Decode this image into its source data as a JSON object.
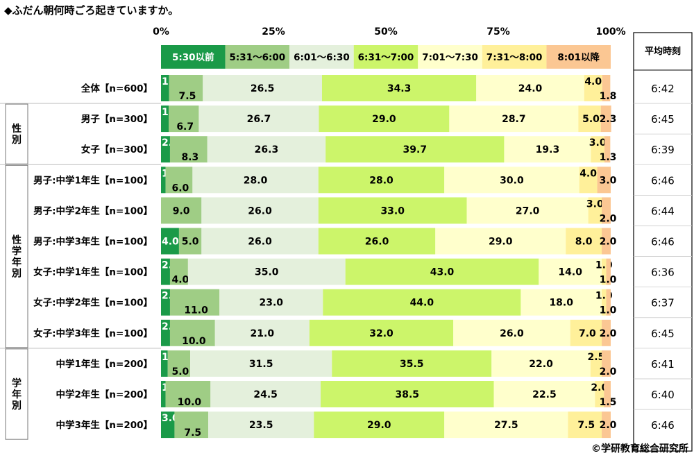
{
  "title": "◆ふだん朝何時ごろ起きていますか。",
  "copyright": "©学研教育総合研究所",
  "chart_data": {
    "type": "bar",
    "orientation": "horizontal-stacked-100",
    "xlim": [
      0,
      100
    ],
    "x_ticks": [
      "0%",
      "25%",
      "50%",
      "75%",
      "100%"
    ],
    "legend_position": "top",
    "series": [
      {
        "name": "5:30以前",
        "color": "#1a9a48",
        "label_color": "#ffffff"
      },
      {
        "name": "5:31～6:00",
        "color": "#9fcd85",
        "label_color": "#000000"
      },
      {
        "name": "6:01～6:30",
        "color": "#e4f0dc",
        "label_color": "#000000"
      },
      {
        "name": "6:31～7:00",
        "color": "#ccf56a",
        "label_color": "#000000"
      },
      {
        "name": "7:01～7:30",
        "color": "#ffffcc",
        "label_color": "#000000"
      },
      {
        "name": "7:31～8:00",
        "color": "#fff09a",
        "label_color": "#000000"
      },
      {
        "name": "8:01以降",
        "color": "#fbc793",
        "label_color": "#000000"
      }
    ],
    "side_column_header": "平均時刻",
    "categories": [
      {
        "label": "全体【n=600】",
        "values": [
          1.8,
          7.5,
          26.5,
          34.3,
          24.0,
          4.0,
          1.8
        ],
        "average": "6:42"
      },
      {
        "label": "男子【n=300】",
        "values": [
          1.7,
          6.7,
          26.7,
          29.0,
          28.7,
          5.0,
          2.3
        ],
        "average": "6:45"
      },
      {
        "label": "女子【n=300】",
        "values": [
          2.0,
          8.3,
          26.3,
          39.7,
          19.3,
          3.0,
          1.3
        ],
        "average": "6:39"
      },
      {
        "label": "男子:中学1年生【n=100】",
        "values": [
          1.0,
          6.0,
          28.0,
          28.0,
          30.0,
          4.0,
          3.0
        ],
        "average": "6:46"
      },
      {
        "label": "男子:中学2年生【n=100】",
        "values": [
          0.0,
          9.0,
          26.0,
          33.0,
          27.0,
          3.0,
          2.0
        ],
        "average": "6:44"
      },
      {
        "label": "男子:中学3年生【n=100】",
        "values": [
          4.0,
          5.0,
          26.0,
          26.0,
          29.0,
          8.0,
          2.0
        ],
        "average": "6:46"
      },
      {
        "label": "女子:中学1年生【n=100】",
        "values": [
          2.0,
          4.0,
          35.0,
          43.0,
          14.0,
          1.0,
          1.0
        ],
        "average": "6:36"
      },
      {
        "label": "女子:中学2年生【n=100】",
        "values": [
          2.0,
          11.0,
          23.0,
          44.0,
          18.0,
          1.0,
          1.0
        ],
        "average": "6:37"
      },
      {
        "label": "女子:中学3年生【n=100】",
        "values": [
          2.0,
          10.0,
          21.0,
          32.0,
          26.0,
          7.0,
          2.0
        ],
        "average": "6:45"
      },
      {
        "label": "中学1年生【n=200】",
        "values": [
          1.5,
          5.0,
          31.5,
          35.5,
          22.0,
          2.5,
          2.0
        ],
        "average": "6:41"
      },
      {
        "label": "中学2年生【n=200】",
        "values": [
          1.0,
          10.0,
          24.5,
          38.5,
          22.5,
          2.0,
          1.5
        ],
        "average": "6:40"
      },
      {
        "label": "中学3年生【n=200】",
        "values": [
          3.0,
          7.5,
          23.5,
          29.0,
          27.5,
          7.5,
          2.0
        ],
        "average": "6:46"
      }
    ],
    "groups": [
      {
        "label": "性別",
        "start": 1,
        "end": 2
      },
      {
        "label": "性学年別",
        "start": 3,
        "end": 8
      },
      {
        "label": "学年別",
        "start": 9,
        "end": 11
      }
    ]
  }
}
